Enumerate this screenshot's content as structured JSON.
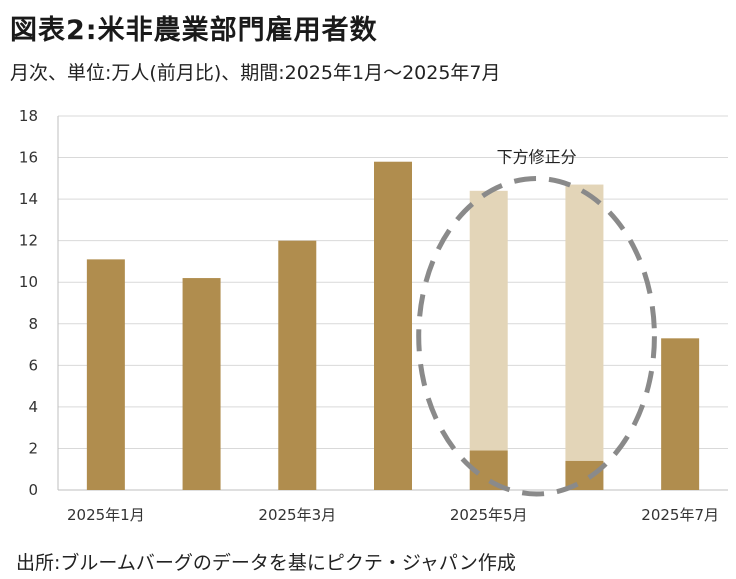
{
  "header": {
    "title": "図表2:米非農業部門雇用者数",
    "subtitle": "月次、単位:万人(前月比)、期間:2025年1月〜2025年7月"
  },
  "footer": {
    "source": "出所:ブルームバーグのデータを基にピクテ・ジャパン作成"
  },
  "colors": {
    "bar": "#b08d4e",
    "revision": "#e3d5b8",
    "ellipse": "#8a8a8a",
    "grid": "#d9d9d9"
  },
  "chart_data": {
    "type": "bar",
    "categories": [
      "2025年1月",
      "2025年2月",
      "2025年3月",
      "2025年4月",
      "2025年5月",
      "2025年6月",
      "2025年7月"
    ],
    "x_tick_labels": [
      "2025年1月",
      "",
      "2025年3月",
      "",
      "2025年5月",
      "",
      "2025年7月"
    ],
    "series": [
      {
        "values": [
          11.1,
          10.2,
          12.0,
          15.8,
          1.9,
          1.4,
          7.3
        ]
      },
      {
        "values": [
          0,
          0,
          0,
          0,
          12.5,
          13.3,
          0
        ]
      }
    ],
    "stacked": true,
    "ylim": [
      0,
      18
    ],
    "yticks": [
      0,
      2,
      4,
      6,
      8,
      10,
      12,
      14,
      16,
      18
    ],
    "grid": true,
    "annotations": [
      {
        "text": "下方修正分",
        "target_categories": [
          "2025年5月",
          "2025年6月"
        ],
        "style": "dashed-ellipse"
      }
    ]
  }
}
